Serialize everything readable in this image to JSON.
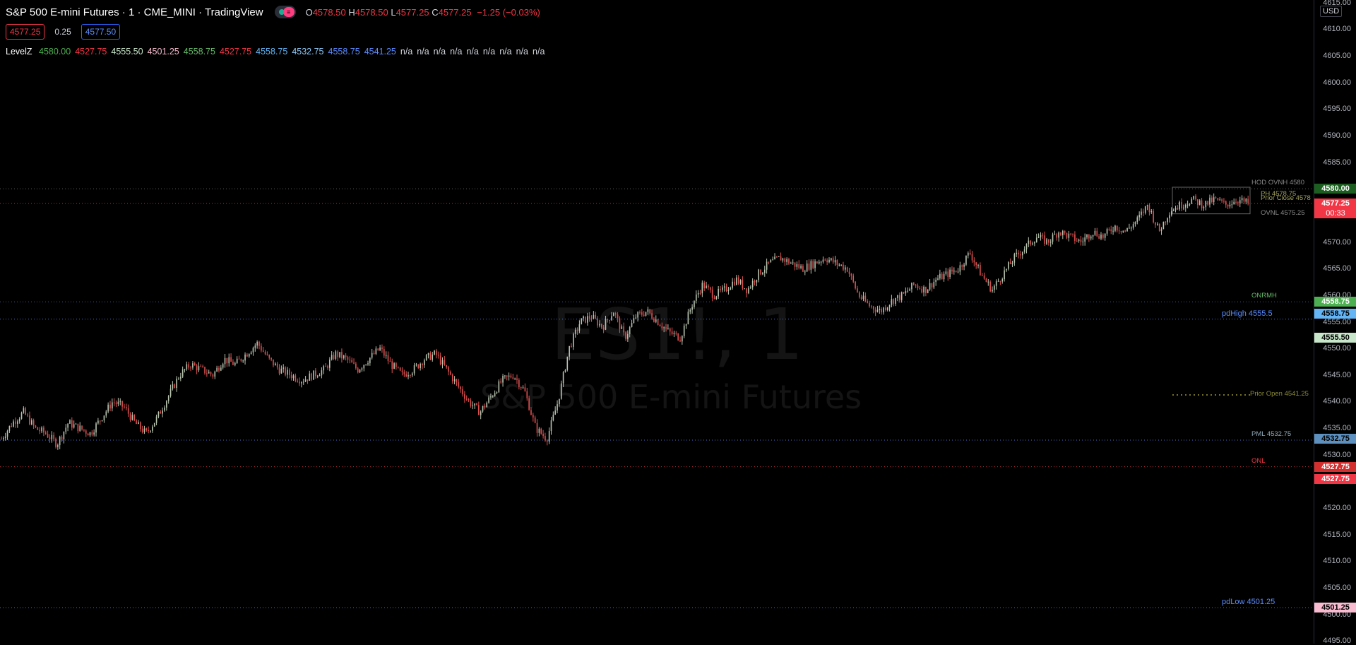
{
  "header": {
    "symbol_title": "S&P 500 E-mini Futures · 1 · CME_MINI · TradingView",
    "ohlc": [
      {
        "key": "O",
        "value": "4578.50"
      },
      {
        "key": "H",
        "value": "4578.50"
      },
      {
        "key": "L",
        "value": "4577.25"
      },
      {
        "key": "C",
        "value": "4577.25"
      }
    ],
    "change": "−1.25 (−0.03%)",
    "bid": "4577.25",
    "spread": "0.25",
    "ask": "4577.50"
  },
  "indicator": {
    "name": "LevelZ",
    "values": [
      {
        "v": "4580.00",
        "color": "#4caf50"
      },
      {
        "v": "4527.75",
        "color": "#f23645"
      },
      {
        "v": "4555.50",
        "color": "#c8e6c9"
      },
      {
        "v": "4501.25",
        "color": "#f8bbd0"
      },
      {
        "v": "4558.75",
        "color": "#66bb6a"
      },
      {
        "v": "4527.75",
        "color": "#f23645"
      },
      {
        "v": "4558.75",
        "color": "#64b5f6"
      },
      {
        "v": "4532.75",
        "color": "#90caf9"
      },
      {
        "v": "4558.75",
        "color": "#5b8cff"
      },
      {
        "v": "4541.25",
        "color": "#5b8cff"
      },
      {
        "v": "n/a",
        "color": "#d1d4dc"
      },
      {
        "v": "n/a",
        "color": "#d1d4dc"
      },
      {
        "v": "n/a",
        "color": "#d1d4dc"
      },
      {
        "v": "n/a",
        "color": "#d1d4dc"
      },
      {
        "v": "n/a",
        "color": "#d1d4dc"
      },
      {
        "v": "n/a",
        "color": "#d1d4dc"
      },
      {
        "v": "n/a",
        "color": "#d1d4dc"
      },
      {
        "v": "n/a",
        "color": "#d1d4dc"
      },
      {
        "v": "n/a",
        "color": "#d1d4dc"
      }
    ]
  },
  "watermark": {
    "line1": "ES1!, 1",
    "line2": "S&P 500 E-mini Futures"
  },
  "axis": {
    "currency": "USD",
    "ticks": [
      "4615.00",
      "4610.00",
      "4605.00",
      "4600.00",
      "4595.00",
      "4590.00",
      "4585.00",
      "4580.00",
      "4575.00",
      "4570.00",
      "4565.00",
      "4560.00",
      "4555.00",
      "4550.00",
      "4545.00",
      "4540.00",
      "4535.00",
      "4530.00",
      "4525.00",
      "4520.00",
      "4515.00",
      "4510.00",
      "4505.00",
      "4500.00",
      "4495.00"
    ],
    "ylim": [
      4494.5,
      4615.5
    ],
    "badges": [
      {
        "price": 4580.0,
        "label": "4580.00",
        "bg": "#1b5e20",
        "fg": "#ffffff"
      },
      {
        "price": 4577.25,
        "label": "4577.25",
        "bg": "#f23645",
        "fg": "#ffffff"
      },
      {
        "price": 4558.75,
        "label": "4558.75",
        "bg": "#4caf50",
        "fg": "#ffffff"
      },
      {
        "price": 4556.5,
        "label": "4558.75",
        "bg": "#64b5f6",
        "fg": "#000000"
      },
      {
        "price": 4552.0,
        "label": "4555.50",
        "bg": "#c8e6c9",
        "fg": "#000000"
      },
      {
        "price": 4533.0,
        "label": "4532.75",
        "bg": "#5d8fbf",
        "fg": "#000000"
      },
      {
        "price": 4527.75,
        "label": "4527.75",
        "bg": "#d32f2f",
        "fg": "#ffffff"
      },
      {
        "price": 4525.4,
        "label": "4527.75",
        "bg": "#f23645",
        "fg": "#ffffff"
      },
      {
        "price": 4501.25,
        "label": "4501.25",
        "bg": "#f8bbd0",
        "fg": "#000000"
      }
    ],
    "countdown": "00:33"
  },
  "levels": [
    {
      "price": 4580.0,
      "color": "#777",
      "style": "dotted",
      "label": "HOD",
      "label2": "OVNH 4580",
      "lcolor": "#888"
    },
    {
      "price": 4577.25,
      "color": "#f23645",
      "style": "dotted"
    },
    {
      "price": 4558.75,
      "color": "#4a72b0",
      "style": "dotted",
      "label": "ONRMH",
      "lcolor": "#66bb6a"
    },
    {
      "price": 4555.5,
      "color": "#5b8cff",
      "style": "dotted",
      "label": "pdHigh",
      "label2": "4555.5",
      "lcolor": "#5b8cff"
    },
    {
      "price": 4532.75,
      "color": "#5b8cff",
      "style": "dotted",
      "label": "PML",
      "label2": "4532.75",
      "lcolor": "#8fa8b8"
    },
    {
      "price": 4527.75,
      "color": "#f23645",
      "style": "dotted",
      "label": "ONL",
      "lcolor": "#f23645"
    },
    {
      "price": 4501.25,
      "color": "#5b8cff",
      "style": "dotted",
      "label": "pdLow",
      "label2": "4501.25",
      "lcolor": "#5b8cff"
    }
  ],
  "annotations": [
    {
      "text": "PH 4578.75",
      "price": 4578.9,
      "color": "#a0a060"
    },
    {
      "text": "Prior Close 4578",
      "price": 4578.0,
      "color": "#a0a060"
    },
    {
      "text": "OVNL 4575.25",
      "price": 4575.3,
      "color": "#888"
    },
    {
      "text": "Prior Open 4541.25",
      "price": 4541.3,
      "color": "#8a8a3a"
    }
  ],
  "chart_data": {
    "type": "candlestick",
    "xlabel": "",
    "ylabel": "",
    "ylim": [
      4494.5,
      4615.5
    ],
    "close_path": [
      4533,
      4536,
      4538,
      4535,
      4534,
      4532,
      4536,
      4535,
      4534,
      4537,
      4540,
      4539,
      4536,
      4534,
      4537,
      4541,
      4545,
      4547,
      4546,
      4545,
      4548,
      4547,
      4549,
      4551,
      4548,
      4546,
      4545,
      4544,
      4545,
      4546,
      4549,
      4548,
      4546,
      4548,
      4550,
      4547,
      4545,
      4546,
      4548,
      4549,
      4546,
      4543,
      4540,
      4538,
      4541,
      4544,
      4545,
      4542,
      4535,
      4533,
      4540,
      4550,
      4555,
      4556,
      4554,
      4557,
      4552,
      4556,
      4557,
      4555,
      4553,
      4552,
      4558,
      4562,
      4560,
      4561,
      4563,
      4561,
      4564,
      4566,
      4567,
      4566,
      4565,
      4566,
      4567,
      4566,
      4565,
      4560,
      4558,
      4557,
      4559,
      4560,
      4562,
      4561,
      4563,
      4564,
      4565,
      4568,
      4564,
      4561,
      4564,
      4567,
      4569,
      4571,
      4570,
      4572,
      4571,
      4570,
      4572,
      4571,
      4573,
      4572,
      4574,
      4577,
      4572,
      4576,
      4577,
      4578,
      4577,
      4578,
      4577,
      4578,
      4577.25
    ]
  }
}
